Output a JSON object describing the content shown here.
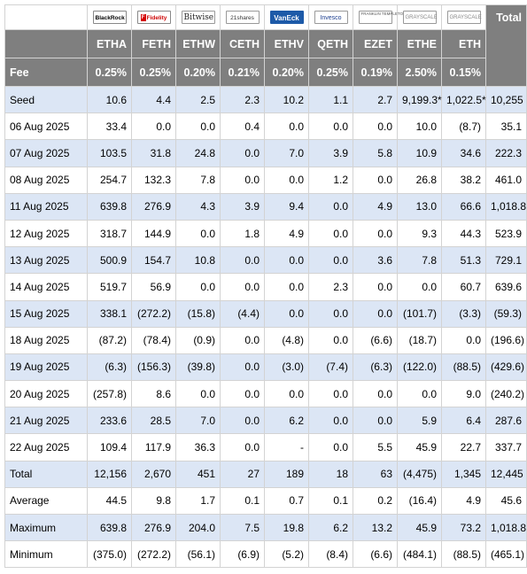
{
  "header": {
    "logos": [
      {
        "text": "BlackRock",
        "icon": "blackrock-logo"
      },
      {
        "text": "Fidelity",
        "icon": "fidelity-logo"
      },
      {
        "text": "Bitwise",
        "icon": "bitwise-logo"
      },
      {
        "text": "21shares",
        "icon": "21shares-logo"
      },
      {
        "text": "VanEck",
        "icon": "vaneck-logo"
      },
      {
        "text": "Invesco",
        "icon": "invesco-logo"
      },
      {
        "text": "FRANKLIN TEMPLETON",
        "icon": "franklin-templeton-logo"
      },
      {
        "text": "GRAYSCALE",
        "icon": "grayscale-logo"
      },
      {
        "text": "GRAYSCALE",
        "icon": "grayscale-logo"
      }
    ],
    "total_label": "Total",
    "tickers": [
      "ETHA",
      "FETH",
      "ETHW",
      "CETH",
      "ETHV",
      "QETH",
      "EZET",
      "ETHE",
      "ETH"
    ],
    "fee_label": "Fee",
    "fees": [
      "0.25%",
      "0.25%",
      "0.20%",
      "0.21%",
      "0.20%",
      "0.25%",
      "0.19%",
      "2.50%",
      "0.15%"
    ]
  },
  "rows": [
    {
      "label": "Seed",
      "values": [
        "10.6",
        "4.4",
        "2.5",
        "2.3",
        "10.2",
        "1.1",
        "2.7",
        "9,199.3*",
        "1,022.5*",
        "10,255"
      ]
    },
    {
      "label": "06 Aug 2025",
      "values": [
        "33.4",
        "0.0",
        "0.0",
        "0.4",
        "0.0",
        "0.0",
        "0.0",
        "10.0",
        "(8.7)",
        "35.1"
      ]
    },
    {
      "label": "07 Aug 2025",
      "values": [
        "103.5",
        "31.8",
        "24.8",
        "0.0",
        "7.0",
        "3.9",
        "5.8",
        "10.9",
        "34.6",
        "222.3"
      ]
    },
    {
      "label": "08 Aug 2025",
      "values": [
        "254.7",
        "132.3",
        "7.8",
        "0.0",
        "0.0",
        "1.2",
        "0.0",
        "26.8",
        "38.2",
        "461.0"
      ]
    },
    {
      "label": "11 Aug 2025",
      "values": [
        "639.8",
        "276.9",
        "4.3",
        "3.9",
        "9.4",
        "0.0",
        "4.9",
        "13.0",
        "66.6",
        "1,018.8"
      ]
    },
    {
      "label": "12 Aug 2025",
      "values": [
        "318.7",
        "144.9",
        "0.0",
        "1.8",
        "4.9",
        "0.0",
        "0.0",
        "9.3",
        "44.3",
        "523.9"
      ]
    },
    {
      "label": "13 Aug 2025",
      "values": [
        "500.9",
        "154.7",
        "10.8",
        "0.0",
        "0.0",
        "0.0",
        "3.6",
        "7.8",
        "51.3",
        "729.1"
      ]
    },
    {
      "label": "14 Aug 2025",
      "values": [
        "519.7",
        "56.9",
        "0.0",
        "0.0",
        "0.0",
        "2.3",
        "0.0",
        "0.0",
        "60.7",
        "639.6"
      ]
    },
    {
      "label": "15 Aug 2025",
      "values": [
        "338.1",
        "(272.2)",
        "(15.8)",
        "(4.4)",
        "0.0",
        "0.0",
        "0.0",
        "(101.7)",
        "(3.3)",
        "(59.3)"
      ]
    },
    {
      "label": "18 Aug 2025",
      "values": [
        "(87.2)",
        "(78.4)",
        "(0.9)",
        "0.0",
        "(4.8)",
        "0.0",
        "(6.6)",
        "(18.7)",
        "0.0",
        "(196.6)"
      ]
    },
    {
      "label": "19 Aug 2025",
      "values": [
        "(6.3)",
        "(156.3)",
        "(39.8)",
        "0.0",
        "(3.0)",
        "(7.4)",
        "(6.3)",
        "(122.0)",
        "(88.5)",
        "(429.6)"
      ]
    },
    {
      "label": "20 Aug 2025",
      "values": [
        "(257.8)",
        "8.6",
        "0.0",
        "0.0",
        "0.0",
        "0.0",
        "0.0",
        "0.0",
        "9.0",
        "(240.2)"
      ]
    },
    {
      "label": "21 Aug 2025",
      "values": [
        "233.6",
        "28.5",
        "7.0",
        "0.0",
        "6.2",
        "0.0",
        "0.0",
        "5.9",
        "6.4",
        "287.6"
      ]
    },
    {
      "label": "22 Aug 2025",
      "values": [
        "109.4",
        "117.9",
        "36.3",
        "0.0",
        "-",
        "0.0",
        "5.5",
        "45.9",
        "22.7",
        "337.7"
      ]
    },
    {
      "label": "Total",
      "values": [
        "12,156",
        "2,670",
        "451",
        "27",
        "189",
        "18",
        "63",
        "(4,475)",
        "1,345",
        "12,445"
      ]
    },
    {
      "label": "Average",
      "values": [
        "44.5",
        "9.8",
        "1.7",
        "0.1",
        "0.7",
        "0.1",
        "0.2",
        "(16.4)",
        "4.9",
        "45.6"
      ]
    },
    {
      "label": "Maximum",
      "values": [
        "639.8",
        "276.9",
        "204.0",
        "7.5",
        "19.8",
        "6.2",
        "13.2",
        "45.9",
        "73.2",
        "1,018.8"
      ]
    },
    {
      "label": "Minimum",
      "values": [
        "(375.0)",
        "(272.2)",
        "(56.1)",
        "(6.9)",
        "(5.2)",
        "(8.4)",
        "(6.6)",
        "(484.1)",
        "(88.5)",
        "(465.1)"
      ]
    }
  ],
  "colors": {
    "header_bg": "#7f7f7f",
    "shade_bg": "#dce6f5",
    "negative": "#e60000"
  }
}
